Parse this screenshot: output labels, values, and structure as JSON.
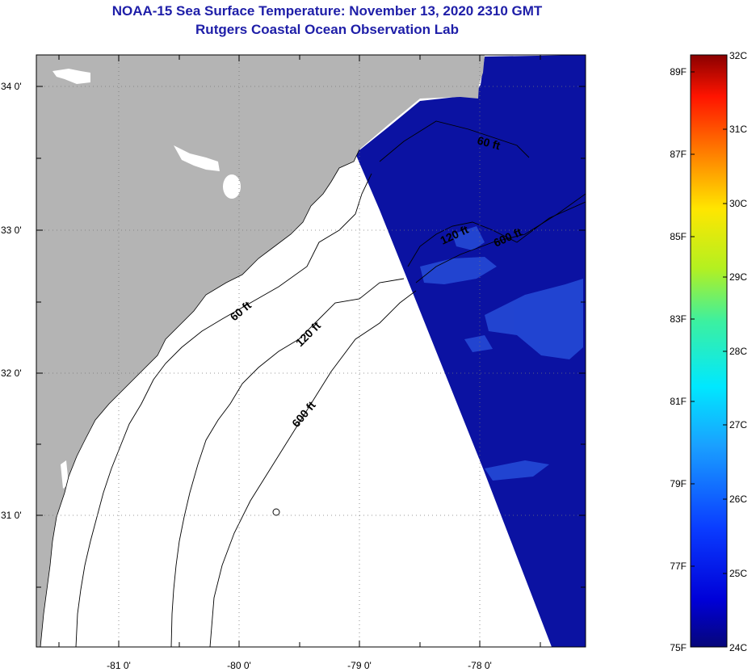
{
  "title": "NOAA-15 Sea Surface Temperature:  November 13, 2020 2310 GMT",
  "subtitle": "Rutgers Coastal Ocean Observation Lab",
  "map": {
    "lon_ticks": [
      "-81 0'",
      "-80 0'",
      "-79 0'",
      "-78 0'"
    ],
    "lat_ticks": [
      "34 0'",
      "33 0'",
      "32 0'",
      "31 0'"
    ],
    "contours": [
      "60 ft",
      "120 ft",
      "600 ft",
      "60 ft",
      "120 ft",
      "600 ft"
    ],
    "colors": {
      "land": "#b4b4b4",
      "ocean_sst": "#0b12a2",
      "warmer_patch": "#2a55e0",
      "contour": "#000000"
    }
  },
  "colorbar": {
    "f_labels": [
      "89F",
      "87F",
      "85F",
      "83F",
      "81F",
      "79F",
      "77F",
      "75F"
    ],
    "c_labels": [
      "32C",
      "31C",
      "30C",
      "29C",
      "28C",
      "27C",
      "26C",
      "25C",
      "24C"
    ],
    "range_c": [
      24,
      32
    ],
    "range_f": [
      75,
      89.6
    ]
  }
}
